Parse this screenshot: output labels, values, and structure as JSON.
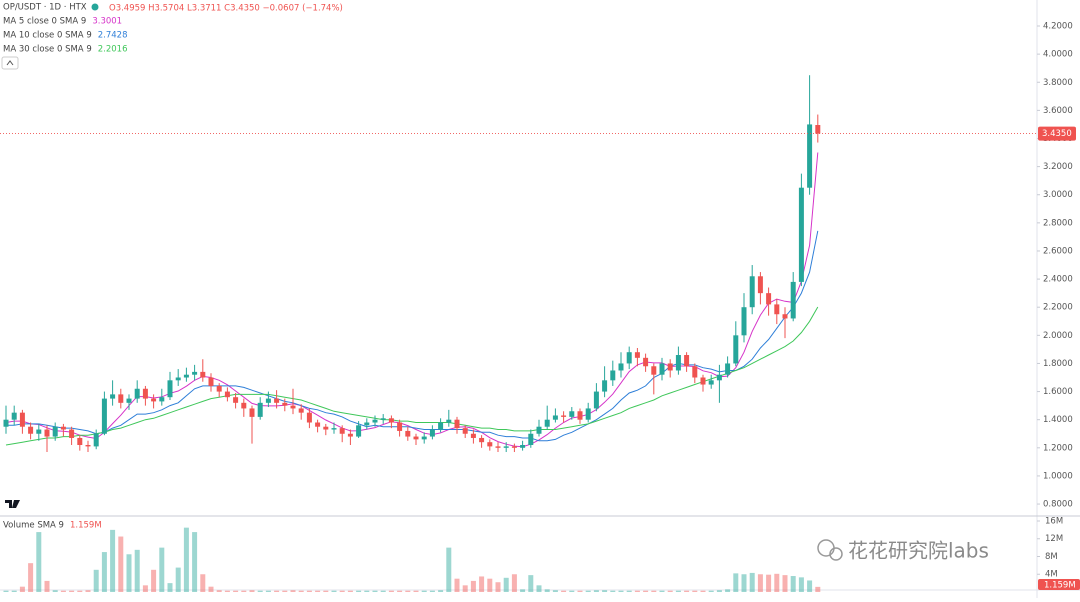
{
  "header": {
    "symbol": "OP/USDT · 1D · HTX",
    "ohlc": "O3.4959 H3.5704 L3.3711 C3.4350 −0.0607 (−1.74%)"
  },
  "watermark": "花花研究院labs",
  "chart_data": {
    "type": "candlestick",
    "ylim": [
      0.715,
      4.385
    ],
    "yticks": [
      {
        "value": 0.8,
        "label": "0.8000"
      },
      {
        "value": 1.0,
        "label": "1.0000"
      },
      {
        "value": 1.2,
        "label": "1.2000"
      },
      {
        "value": 1.4,
        "label": "1.4000"
      },
      {
        "value": 1.6,
        "label": "1.6000"
      },
      {
        "value": 1.8,
        "label": "1.8000"
      },
      {
        "value": 2.0,
        "label": "2.0000"
      },
      {
        "value": 2.2,
        "label": "2.2000"
      },
      {
        "value": 2.4,
        "label": "2.4000"
      },
      {
        "value": 2.6,
        "label": "2.6000"
      },
      {
        "value": 2.8,
        "label": "2.8000"
      },
      {
        "value": 3.0,
        "label": "3.0000"
      },
      {
        "value": 3.2,
        "label": "3.2000"
      },
      {
        "value": 3.4,
        "label": "3.4000"
      },
      {
        "value": 3.6,
        "label": "3.6000"
      },
      {
        "value": 3.8,
        "label": "3.8000"
      },
      {
        "value": 4.0,
        "label": "4.0000"
      },
      {
        "value": 4.2,
        "label": "4.2000"
      }
    ],
    "grid": false,
    "up_color": "#26a69a",
    "down_color": "#ef5350",
    "open": [
      1.35,
      1.4,
      1.45,
      1.35,
      1.3,
      1.33,
      1.28,
      1.35,
      1.33,
      1.27,
      1.22,
      1.21,
      1.3,
      1.55,
      1.58,
      1.52,
      1.55,
      1.62,
      1.55,
      1.53,
      1.56,
      1.68,
      1.7,
      1.72,
      1.74,
      1.7,
      1.64,
      1.6,
      1.56,
      1.52,
      1.48,
      1.42,
      1.52,
      1.55,
      1.52,
      1.5,
      1.48,
      1.45,
      1.38,
      1.35,
      1.33,
      1.34,
      1.3,
      1.28,
      1.36,
      1.38,
      1.4,
      1.41,
      1.38,
      1.32,
      1.28,
      1.26,
      1.28,
      1.33,
      1.38,
      1.4,
      1.34,
      1.3,
      1.27,
      1.24,
      1.21,
      1.2,
      1.21,
      1.2,
      1.22,
      1.3,
      1.35,
      1.4,
      1.43,
      1.42,
      1.46,
      1.4,
      1.48,
      1.6,
      1.68,
      1.75,
      1.8,
      1.88,
      1.84,
      1.78,
      1.72,
      1.8,
      1.75,
      1.86,
      1.78,
      1.7,
      1.65,
      1.68,
      1.72,
      1.8,
      2.0,
      2.2,
      2.42,
      2.3,
      2.22,
      2.15,
      2.12,
      2.38,
      3.05,
      3.4959
    ],
    "high": [
      1.5,
      1.5,
      1.47,
      1.38,
      1.37,
      1.36,
      1.38,
      1.37,
      1.35,
      1.29,
      1.25,
      1.33,
      1.6,
      1.68,
      1.62,
      1.58,
      1.68,
      1.64,
      1.58,
      1.62,
      1.74,
      1.76,
      1.77,
      1.79,
      1.83,
      1.73,
      1.66,
      1.63,
      1.59,
      1.55,
      1.5,
      1.56,
      1.6,
      1.61,
      1.55,
      1.62,
      1.51,
      1.48,
      1.4,
      1.37,
      1.38,
      1.36,
      1.33,
      1.39,
      1.41,
      1.43,
      1.44,
      1.43,
      1.4,
      1.35,
      1.3,
      1.31,
      1.36,
      1.41,
      1.47,
      1.42,
      1.36,
      1.33,
      1.29,
      1.26,
      1.24,
      1.24,
      1.23,
      1.25,
      1.33,
      1.4,
      1.5,
      1.48,
      1.46,
      1.49,
      1.48,
      1.52,
      1.66,
      1.78,
      1.82,
      1.88,
      1.92,
      1.91,
      1.87,
      1.8,
      1.84,
      1.83,
      1.92,
      1.88,
      1.8,
      1.72,
      1.72,
      1.79,
      1.85,
      2.1,
      2.3,
      2.5,
      2.45,
      2.34,
      2.26,
      2.2,
      2.45,
      3.15,
      3.85,
      3.5704
    ],
    "low": [
      1.3,
      1.36,
      1.3,
      1.26,
      1.25,
      1.17,
      1.25,
      1.28,
      1.22,
      1.18,
      1.17,
      1.19,
      1.29,
      1.5,
      1.48,
      1.47,
      1.52,
      1.5,
      1.48,
      1.5,
      1.54,
      1.64,
      1.67,
      1.68,
      1.67,
      1.6,
      1.56,
      1.53,
      1.48,
      1.42,
      1.23,
      1.4,
      1.49,
      1.48,
      1.46,
      1.44,
      1.4,
      1.34,
      1.31,
      1.29,
      1.3,
      1.24,
      1.22,
      1.27,
      1.33,
      1.35,
      1.37,
      1.34,
      1.28,
      1.25,
      1.22,
      1.23,
      1.26,
      1.31,
      1.35,
      1.3,
      1.27,
      1.23,
      1.2,
      1.18,
      1.17,
      1.17,
      1.17,
      1.18,
      1.2,
      1.28,
      1.33,
      1.38,
      1.38,
      1.4,
      1.37,
      1.38,
      1.46,
      1.56,
      1.64,
      1.7,
      1.76,
      1.78,
      1.74,
      1.58,
      1.68,
      1.7,
      1.72,
      1.74,
      1.66,
      1.6,
      1.62,
      1.52,
      1.7,
      1.78,
      1.95,
      2.15,
      2.22,
      2.14,
      2.08,
      1.98,
      2.1,
      2.35,
      3.0,
      3.3711
    ],
    "close": [
      1.4,
      1.45,
      1.35,
      1.3,
      1.33,
      1.28,
      1.35,
      1.33,
      1.27,
      1.22,
      1.21,
      1.3,
      1.55,
      1.58,
      1.52,
      1.55,
      1.62,
      1.55,
      1.53,
      1.56,
      1.68,
      1.7,
      1.72,
      1.74,
      1.7,
      1.64,
      1.6,
      1.56,
      1.52,
      1.48,
      1.42,
      1.52,
      1.55,
      1.52,
      1.5,
      1.48,
      1.45,
      1.38,
      1.35,
      1.33,
      1.34,
      1.3,
      1.28,
      1.36,
      1.38,
      1.4,
      1.41,
      1.38,
      1.32,
      1.28,
      1.26,
      1.28,
      1.33,
      1.38,
      1.4,
      1.34,
      1.3,
      1.27,
      1.24,
      1.21,
      1.2,
      1.21,
      1.2,
      1.22,
      1.3,
      1.35,
      1.4,
      1.43,
      1.42,
      1.46,
      1.4,
      1.48,
      1.6,
      1.68,
      1.75,
      1.8,
      1.88,
      1.84,
      1.78,
      1.72,
      1.8,
      1.75,
      1.86,
      1.78,
      1.7,
      1.65,
      1.68,
      1.72,
      1.8,
      2.0,
      2.2,
      2.42,
      2.3,
      2.22,
      2.15,
      2.12,
      2.38,
      3.05,
      3.5,
      3.435
    ],
    "last_price_label": "3.4350",
    "indicators": [
      {
        "name": "MA 5 close 0 SMA 9",
        "color": "#d633c9",
        "value_label": "3.3001",
        "values": [
          1.38,
          1.39,
          1.39,
          1.37,
          1.366,
          1.342,
          1.322,
          1.318,
          1.312,
          1.29,
          1.276,
          1.266,
          1.31,
          1.372,
          1.432,
          1.5,
          1.564,
          1.564,
          1.554,
          1.562,
          1.588,
          1.604,
          1.638,
          1.68,
          1.708,
          1.7,
          1.68,
          1.648,
          1.604,
          1.56,
          1.516,
          1.5,
          1.498,
          1.498,
          1.502,
          1.514,
          1.5,
          1.466,
          1.432,
          1.398,
          1.37,
          1.34,
          1.32,
          1.322,
          1.332,
          1.344,
          1.366,
          1.386,
          1.378,
          1.358,
          1.33,
          1.304,
          1.294,
          1.306,
          1.33,
          1.346,
          1.35,
          1.338,
          1.31,
          1.272,
          1.244,
          1.226,
          1.212,
          1.208,
          1.226,
          1.256,
          1.294,
          1.34,
          1.38,
          1.412,
          1.422,
          1.438,
          1.472,
          1.524,
          1.582,
          1.662,
          1.742,
          1.79,
          1.81,
          1.804,
          1.804,
          1.778,
          1.782,
          1.782,
          1.778,
          1.748,
          1.734,
          1.706,
          1.71,
          1.77,
          1.88,
          2.028,
          2.144,
          2.228,
          2.258,
          2.242,
          2.234,
          2.384,
          2.64,
          3.3001
        ]
      },
      {
        "name": "MA 10 close 0 SMA 9",
        "color": "#2f7fd8",
        "value_label": "2.7428",
        "values": [
          1.36,
          1.36,
          1.37,
          1.37,
          1.37,
          1.36,
          1.35,
          1.34,
          1.34,
          1.33,
          1.32,
          1.3,
          1.31,
          1.34,
          1.36,
          1.4,
          1.44,
          1.44,
          1.45,
          1.47,
          1.5,
          1.52,
          1.57,
          1.62,
          1.64,
          1.64,
          1.64,
          1.64,
          1.64,
          1.63,
          1.61,
          1.59,
          1.57,
          1.55,
          1.53,
          1.52,
          1.5,
          1.48,
          1.47,
          1.45,
          1.44,
          1.42,
          1.39,
          1.37,
          1.35,
          1.36,
          1.35,
          1.35,
          1.35,
          1.35,
          1.34,
          1.33,
          1.33,
          1.33,
          1.33,
          1.33,
          1.33,
          1.32,
          1.31,
          1.31,
          1.29,
          1.28,
          1.28,
          1.27,
          1.27,
          1.25,
          1.25,
          1.26,
          1.29,
          1.31,
          1.34,
          1.37,
          1.4,
          1.44,
          1.48,
          1.54,
          1.59,
          1.61,
          1.64,
          1.7,
          1.73,
          1.78,
          1.8,
          1.79,
          1.79,
          1.77,
          1.76,
          1.74,
          1.75,
          1.75,
          1.78,
          1.83,
          1.91,
          1.97,
          2.05,
          2.13,
          2.2,
          2.3,
          2.45,
          2.7428
        ]
      },
      {
        "name": "MA 30 close 0 SMA 9",
        "color": "#3fc75a",
        "value_label": "2.2016",
        "values": [
          1.22,
          1.23,
          1.24,
          1.25,
          1.26,
          1.27,
          1.27,
          1.28,
          1.28,
          1.29,
          1.29,
          1.3,
          1.31,
          1.33,
          1.34,
          1.36,
          1.38,
          1.4,
          1.41,
          1.43,
          1.45,
          1.47,
          1.49,
          1.51,
          1.53,
          1.55,
          1.56,
          1.57,
          1.58,
          1.58,
          1.58,
          1.58,
          1.58,
          1.57,
          1.56,
          1.55,
          1.54,
          1.52,
          1.5,
          1.48,
          1.46,
          1.45,
          1.44,
          1.43,
          1.42,
          1.41,
          1.4,
          1.4,
          1.39,
          1.39,
          1.38,
          1.38,
          1.38,
          1.38,
          1.38,
          1.37,
          1.36,
          1.35,
          1.34,
          1.34,
          1.33,
          1.33,
          1.32,
          1.32,
          1.32,
          1.33,
          1.33,
          1.33,
          1.34,
          1.35,
          1.36,
          1.37,
          1.39,
          1.41,
          1.43,
          1.45,
          1.48,
          1.5,
          1.52,
          1.54,
          1.57,
          1.59,
          1.61,
          1.63,
          1.65,
          1.67,
          1.69,
          1.71,
          1.73,
          1.75,
          1.77,
          1.8,
          1.83,
          1.86,
          1.89,
          1.92,
          1.96,
          2.02,
          2.1,
          2.2016
        ]
      }
    ],
    "volume": {
      "title": "Volume SMA 9",
      "value_label": "1.159M",
      "ylim": [
        0,
        16.9
      ],
      "yticks": [
        {
          "value": 4,
          "label": "4M"
        },
        {
          "value": 8,
          "label": "8M"
        },
        {
          "value": 12,
          "label": "12M"
        },
        {
          "value": 16,
          "label": "16M"
        }
      ],
      "values": [
        0.3,
        0.3,
        1.2,
        6.5,
        13.5,
        2.5,
        0.4,
        0.3,
        0.3,
        0.3,
        0.4,
        5.0,
        9.0,
        14.0,
        12.5,
        8.5,
        9.5,
        1.5,
        5.0,
        10.0,
        2.0,
        5.5,
        14.5,
        13.5,
        4.0,
        1.2,
        0.4,
        0.3,
        0.3,
        0.3,
        0.4,
        0.3,
        0.3,
        0.3,
        0.3,
        0.4,
        0.3,
        0.3,
        0.3,
        0.3,
        0.3,
        0.3,
        0.3,
        0.3,
        0.3,
        0.3,
        0.3,
        0.3,
        0.3,
        0.3,
        0.3,
        0.3,
        0.3,
        0.4,
        10.0,
        3.0,
        1.5,
        2.5,
        3.5,
        3.0,
        2.2,
        3.2,
        4.0,
        0.6,
        3.8,
        1.5,
        0.6,
        0.4,
        0.3,
        0.3,
        0.3,
        0.3,
        0.4,
        0.4,
        0.3,
        0.3,
        0.3,
        0.3,
        0.3,
        0.3,
        0.3,
        0.3,
        0.3,
        0.3,
        0.3,
        0.3,
        0.3,
        0.4,
        0.6,
        4.2,
        4.0,
        4.3,
        4.0,
        3.9,
        4.1,
        3.8,
        3.6,
        3.3,
        2.6,
        1.159
      ]
    }
  }
}
